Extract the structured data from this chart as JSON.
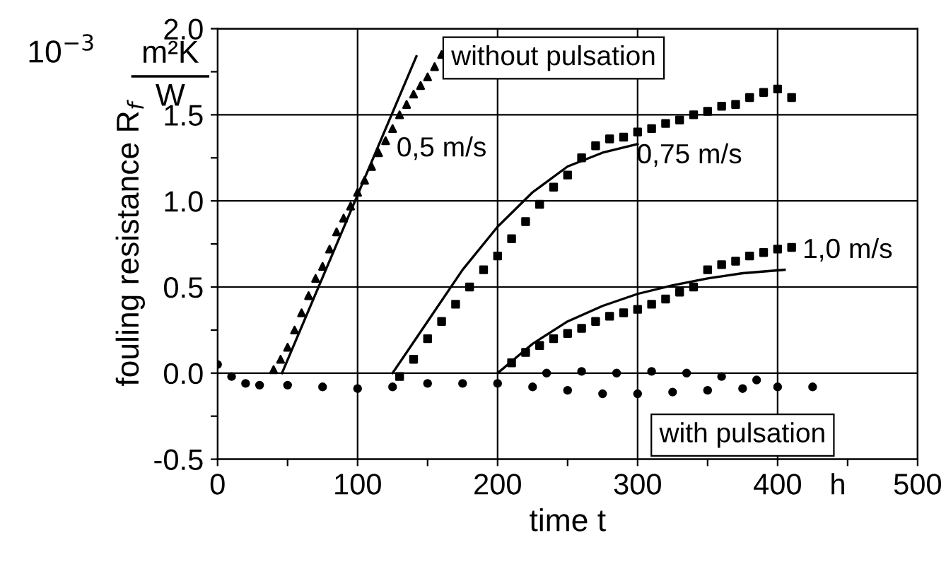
{
  "chart_data": {
    "type": "scatter",
    "xlabel": "time t",
    "ylabel": "fouling resistance R$_{f}$",
    "xlim": [
      0,
      500
    ],
    "ylim": [
      -0.5,
      2.0
    ],
    "xticks": [
      0,
      {
        "value": 50,
        "label": null
      },
      100,
      {
        "value": 150,
        "label": null
      },
      200,
      {
        "value": 250,
        "label": null
      },
      300,
      {
        "value": 350,
        "label": null
      },
      400,
      {
        "value": 450,
        "label": null
      },
      500
    ],
    "yticks": [
      {
        "value": -0.5,
        "label": "-0.5"
      },
      {
        "value": -0.25,
        "label": null
      },
      {
        "value": 0.0,
        "label": "0.0"
      },
      {
        "value": 0.25,
        "label": null
      },
      {
        "value": 0.5,
        "label": "0.5"
      },
      {
        "value": 0.75,
        "label": null
      },
      {
        "value": 1.0,
        "label": "1.0"
      },
      {
        "value": 1.25,
        "label": null
      },
      {
        "value": 1.5,
        "label": "1.5"
      },
      {
        "value": 1.75,
        "label": null
      },
      {
        "value": 2.0,
        "label": "2.0"
      }
    ],
    "grid": true,
    "series": [
      {
        "marker": "triangle",
        "color": "#000000",
        "x": [
          40,
          45,
          50,
          55,
          60,
          65,
          70,
          75,
          80,
          85,
          90,
          95,
          100,
          105,
          110,
          115,
          120,
          125,
          130,
          135,
          140,
          145,
          150,
          155,
          160
        ],
        "values": [
          0.02,
          0.08,
          0.15,
          0.25,
          0.35,
          0.45,
          0.55,
          0.62,
          0.72,
          0.82,
          0.9,
          0.97,
          1.05,
          1.12,
          1.2,
          1.28,
          1.35,
          1.42,
          1.5,
          1.56,
          1.62,
          1.67,
          1.72,
          1.78,
          1.85
        ]
      },
      {
        "type": "line",
        "color": "#000000",
        "x": [
          46,
          142
        ],
        "values": [
          0.0,
          1.84
        ]
      },
      {
        "marker": "square",
        "color": "#000000",
        "x": [
          130,
          140,
          150,
          160,
          170,
          180,
          190,
          200,
          210,
          220,
          230,
          240,
          250,
          260,
          270,
          280,
          290,
          300,
          310,
          320,
          330,
          340,
          350,
          360,
          370,
          380,
          390,
          400,
          410
        ],
        "values": [
          -0.02,
          0.08,
          0.2,
          0.3,
          0.4,
          0.5,
          0.6,
          0.68,
          0.78,
          0.88,
          0.98,
          1.08,
          1.15,
          1.25,
          1.32,
          1.36,
          1.37,
          1.4,
          1.42,
          1.45,
          1.47,
          1.5,
          1.52,
          1.55,
          1.56,
          1.6,
          1.63,
          1.65,
          1.6
        ]
      },
      {
        "type": "line",
        "color": "#000000",
        "x": [
          125,
          150,
          175,
          200,
          225,
          250,
          275,
          300
        ],
        "values": [
          0.0,
          0.3,
          0.6,
          0.85,
          1.05,
          1.2,
          1.28,
          1.33
        ]
      },
      {
        "marker": "square",
        "color": "#000000",
        "x": [
          210,
          220,
          230,
          240,
          250,
          260,
          270,
          280,
          290,
          300,
          310,
          320,
          330,
          340,
          350,
          360,
          370,
          380,
          390,
          400,
          410
        ],
        "values": [
          0.06,
          0.12,
          0.16,
          0.2,
          0.23,
          0.26,
          0.3,
          0.33,
          0.35,
          0.37,
          0.4,
          0.43,
          0.47,
          0.5,
          0.6,
          0.63,
          0.65,
          0.68,
          0.7,
          0.72,
          0.73
        ]
      },
      {
        "type": "line",
        "color": "#000000",
        "x": [
          200,
          225,
          250,
          275,
          300,
          325,
          350,
          375,
          405
        ],
        "values": [
          0.0,
          0.17,
          0.3,
          0.39,
          0.46,
          0.51,
          0.55,
          0.58,
          0.6
        ]
      },
      {
        "marker": "circle",
        "color": "#000000",
        "x": [
          0,
          10,
          20,
          30,
          50,
          75,
          100,
          125,
          150,
          175,
          200,
          225,
          250,
          275,
          300,
          325,
          350,
          375,
          400,
          425
        ],
        "values": [
          0.05,
          -0.02,
          -0.06,
          -0.07,
          -0.07,
          -0.08,
          -0.09,
          -0.08,
          -0.06,
          -0.06,
          -0.06,
          -0.08,
          -0.1,
          -0.12,
          -0.12,
          -0.11,
          -0.1,
          -0.09,
          -0.08,
          -0.08
        ]
      },
      {
        "marker": "circle",
        "color": "#000000",
        "x": [
          235,
          260,
          285,
          310,
          335,
          360,
          385
        ],
        "values": [
          0.0,
          0.01,
          0.0,
          0.01,
          0.0,
          -0.02,
          -0.04
        ]
      }
    ],
    "annotations": [
      "0,5 m/s",
      "0,75 m/s",
      "1,0 m/s",
      "without pulsation",
      "with pulsation",
      "10$^{−3}$",
      "m²K",
      "W",
      "h"
    ]
  }
}
